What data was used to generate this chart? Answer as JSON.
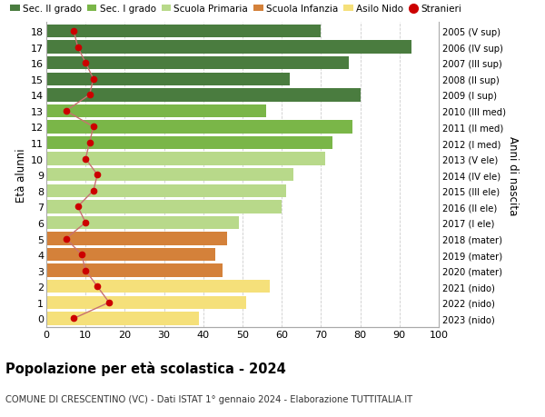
{
  "ages": [
    18,
    17,
    16,
    15,
    14,
    13,
    12,
    11,
    10,
    9,
    8,
    7,
    6,
    5,
    4,
    3,
    2,
    1,
    0
  ],
  "bar_values": [
    70,
    93,
    77,
    62,
    80,
    56,
    78,
    73,
    71,
    63,
    61,
    60,
    49,
    46,
    43,
    45,
    57,
    51,
    39
  ],
  "stranieri_values": [
    7,
    8,
    10,
    12,
    11,
    5,
    12,
    11,
    10,
    13,
    12,
    8,
    10,
    5,
    9,
    10,
    13,
    16,
    7
  ],
  "right_labels": [
    "2005 (V sup)",
    "2006 (IV sup)",
    "2007 (III sup)",
    "2008 (II sup)",
    "2009 (I sup)",
    "2010 (III med)",
    "2011 (II med)",
    "2012 (I med)",
    "2013 (V ele)",
    "2014 (IV ele)",
    "2015 (III ele)",
    "2016 (II ele)",
    "2017 (I ele)",
    "2018 (mater)",
    "2019 (mater)",
    "2020 (mater)",
    "2021 (nido)",
    "2022 (nido)",
    "2023 (nido)"
  ],
  "bar_colors": [
    "#4a7c3f",
    "#4a7c3f",
    "#4a7c3f",
    "#4a7c3f",
    "#4a7c3f",
    "#7ab648",
    "#7ab648",
    "#7ab648",
    "#b8d98a",
    "#b8d98a",
    "#b8d98a",
    "#b8d98a",
    "#b8d98a",
    "#d4813a",
    "#d4813a",
    "#d4813a",
    "#f5e07a",
    "#f5e07a",
    "#f5e07a"
  ],
  "legend_labels": [
    "Sec. II grado",
    "Sec. I grado",
    "Scuola Primaria",
    "Scuola Infanzia",
    "Asilo Nido",
    "Stranieri"
  ],
  "legend_colors": [
    "#4a7c3f",
    "#7ab648",
    "#b8d98a",
    "#d4813a",
    "#f5e07a",
    "#cc0000"
  ],
  "stranieri_color": "#cc0000",
  "stranieri_line_color": "#c87070",
  "ylabel": "Età alunni",
  "ylabel_right": "Anni di nascita",
  "title": "Popolazione per età scolastica - 2024",
  "subtitle": "COMUNE DI CRESCENTINO (VC) - Dati ISTAT 1° gennaio 2024 - Elaborazione TUTTITALIA.IT",
  "xlim": [
    0,
    100
  ],
  "xticks": [
    0,
    10,
    20,
    30,
    40,
    50,
    60,
    70,
    80,
    90,
    100
  ],
  "background_color": "#ffffff",
  "bar_height": 0.82,
  "grid_color": "#cccccc"
}
